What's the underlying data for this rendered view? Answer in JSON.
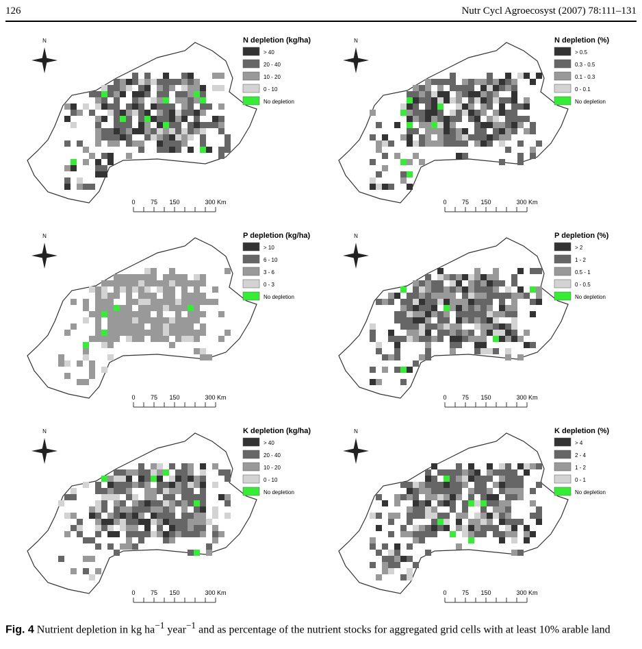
{
  "header": {
    "page_number": "126",
    "journal": "Nutr Cycl Agroecosyst (2007) 78:111–131"
  },
  "north_label": "N",
  "scale_labels": [
    "0",
    "75",
    "150",
    "300 Km"
  ],
  "maps": [
    {
      "legend_title": "N depletion (kg/ha)",
      "legend_items": [
        "> 40",
        "20 - 40",
        "10 - 20",
        "0 - 10",
        "No depletion"
      ]
    },
    {
      "legend_title": "N depletion (%)",
      "legend_items": [
        "> 0.5",
        "0.3 - 0.5",
        "0.1 - 0.3",
        "0 - 0.1",
        "No depletion"
      ]
    },
    {
      "legend_title": "P depletion (kg/ha)",
      "legend_items": [
        "> 10",
        "6 - 10",
        "3 - 6",
        "0 - 3",
        "No depletion"
      ]
    },
    {
      "legend_title": "P depletion (%)",
      "legend_items": [
        "> 2",
        "1 - 2",
        "0.5 - 1",
        "0 - 0.5",
        "No depletion"
      ]
    },
    {
      "legend_title": "K depletion (kg/ha)",
      "legend_items": [
        "> 40",
        "20 - 40",
        "10 - 20",
        "0 - 10",
        "No depletion"
      ]
    },
    {
      "legend_title": "K depletion (%)",
      "legend_items": [
        "> 4",
        "2 - 4",
        "1 - 2",
        "0 - 1",
        "No depletion"
      ]
    }
  ],
  "caption": {
    "label": "Fig. 4",
    "text_1": "Nutrient depletion in kg ha",
    "sup_1": "−1",
    "text_2": " year",
    "sup_2": "−1",
    "text_3": " and as percentage of the nutrient stocks for aggregated grid cells with at least 10% arable land"
  }
}
